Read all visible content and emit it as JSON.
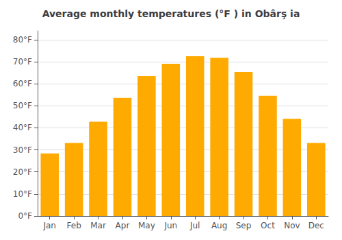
{
  "chart_data": {
    "type": "bar",
    "title": "Average monthly temperatures (°F ) in Obârş ia",
    "categories": [
      "Jan",
      "Feb",
      "Mar",
      "Apr",
      "May",
      "Jun",
      "Jul",
      "Aug",
      "Sep",
      "Oct",
      "Nov",
      "Dec"
    ],
    "values": [
      28.4,
      33.1,
      42.8,
      53.6,
      63.5,
      69.1,
      72.5,
      71.8,
      65.3,
      54.5,
      44.1,
      33.1
    ],
    "color": "#FFAA00",
    "ylim": [
      0,
      84
    ],
    "yticks": [
      {
        "value": 0,
        "label": "0°F"
      },
      {
        "value": 10,
        "label": "10°F"
      },
      {
        "value": 20,
        "label": "20°F"
      },
      {
        "value": 30,
        "label": "30°F"
      },
      {
        "value": 40,
        "label": "40°F"
      },
      {
        "value": 50,
        "label": "50°F"
      },
      {
        "value": 60,
        "label": "60°F"
      },
      {
        "value": 70,
        "label": "70°F"
      },
      {
        "value": 80,
        "label": "80°F"
      }
    ],
    "grid": true
  }
}
